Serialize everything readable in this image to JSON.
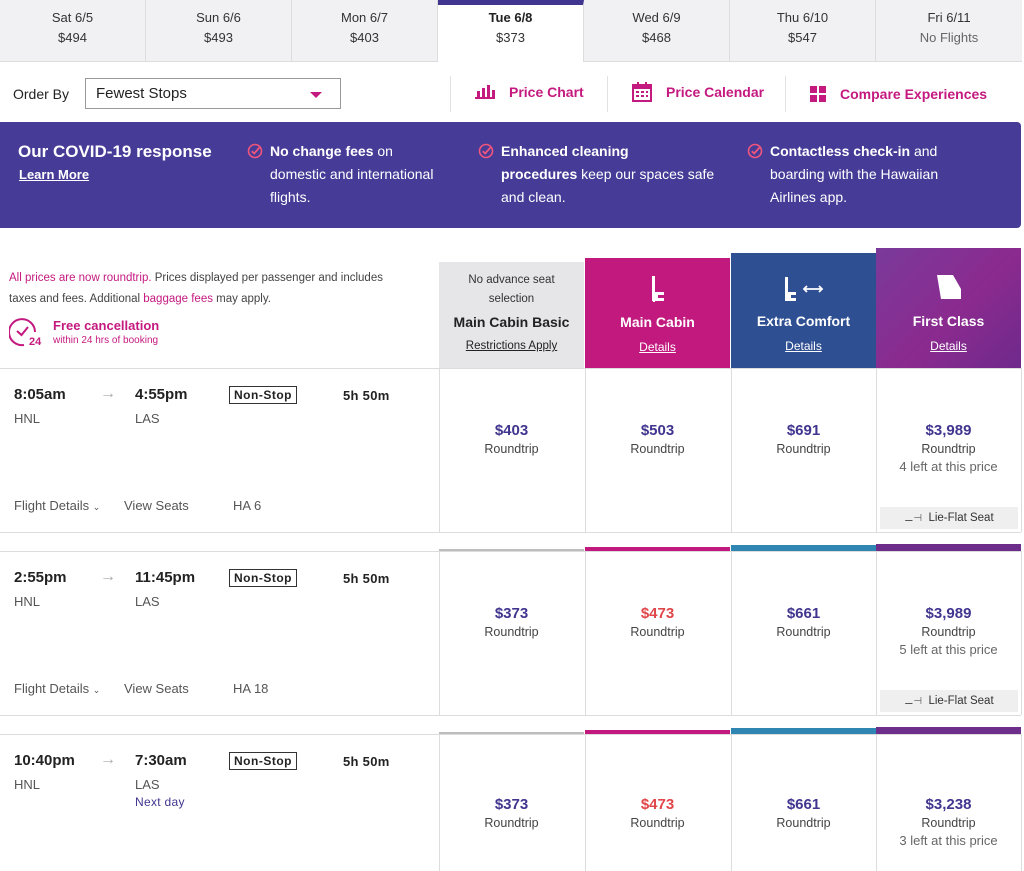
{
  "date_tabs": [
    {
      "day": "Sat 6/5",
      "price": "$494"
    },
    {
      "day": "Sun 6/6",
      "price": "$493"
    },
    {
      "day": "Mon 6/7",
      "price": "$403"
    },
    {
      "day": "Tue 6/8",
      "price": "$373"
    },
    {
      "day": "Wed 6/9",
      "price": "$468"
    },
    {
      "day": "Thu 6/10",
      "price": "$547"
    },
    {
      "day": "Fri 6/11",
      "price": "No Flights"
    }
  ],
  "order": {
    "label": "Order By",
    "selected": "Fewest Stops"
  },
  "tools": {
    "price_chart": "Price Chart",
    "price_calendar": "Price Calendar",
    "compare": "Compare Experiences"
  },
  "covid": {
    "title": "Our COVID-19 response",
    "learn_more": "Learn More",
    "items": [
      {
        "bold": "No change fees",
        "rest1": " on",
        "line2": "domestic and international",
        "line3": "flights."
      },
      {
        "bold": "Enhanced cleaning",
        "rest1": "",
        "line2b": "procedures",
        "line2": " keep our spaces safe",
        "line3": "and clean."
      },
      {
        "bold": "Contactless check-in",
        "rest1": " and",
        "line2": "boarding with the Hawaiian",
        "line3": "Airlines app."
      }
    ]
  },
  "notice": {
    "pink1": "All prices are now roundtrip.",
    "text1": " Prices displayed per passenger and includes",
    "text2": "taxes and fees. Additional ",
    "pink2": "baggage fees",
    "text3": " may apply."
  },
  "free_cancel": {
    "title": "Free cancellation",
    "sub": "within 24 hrs of booking",
    "badge": "24"
  },
  "cabins": {
    "basic": {
      "note1": "No advance seat",
      "note2": "selection",
      "name": "Main Cabin Basic",
      "link": "Restrictions Apply"
    },
    "main": {
      "name": "Main Cabin",
      "link": "Details"
    },
    "extra": {
      "name": "Extra Comfort",
      "link": "Details"
    },
    "first": {
      "name": "First Class",
      "link": "Details"
    }
  },
  "flights": [
    {
      "depart": "8:05am",
      "arrive": "4:55pm",
      "from": "HNL",
      "to": "LAS",
      "stops": "Non-Stop",
      "duration": "5h 50m",
      "details": "Flight Details",
      "seats": "View Seats",
      "number": "HA 6",
      "next_day": "",
      "prices": [
        "$403",
        "$503",
        "$691",
        "$3,989"
      ],
      "rt": "Roundtrip",
      "left": "4 left at this price",
      "lieflat": "Lie-Flat Seat"
    },
    {
      "depart": "2:55pm",
      "arrive": "11:45pm",
      "from": "HNL",
      "to": "LAS",
      "stops": "Non-Stop",
      "duration": "5h 50m",
      "details": "Flight Details",
      "seats": "View Seats",
      "number": "HA 18",
      "next_day": "",
      "prices": [
        "$373",
        "$473",
        "$661",
        "$3,989"
      ],
      "rt": "Roundtrip",
      "left": "5 left at this price",
      "lieflat": "Lie-Flat Seat"
    },
    {
      "depart": "10:40pm",
      "arrive": "7:30am",
      "from": "HNL",
      "to": "LAS",
      "stops": "Non-Stop",
      "duration": "5h 50m",
      "details": "",
      "seats": "",
      "number": "",
      "next_day": "Next day",
      "prices": [
        "$373",
        "$473",
        "$661",
        "$3,238"
      ],
      "rt": "Roundtrip",
      "left": "3 left at this price",
      "lieflat": ""
    }
  ],
  "colors": {
    "brand_purple": "#40358f",
    "brand_pink": "#c4197f",
    "extra_blue": "#2e4f92",
    "sale_red": "#e0464a"
  }
}
